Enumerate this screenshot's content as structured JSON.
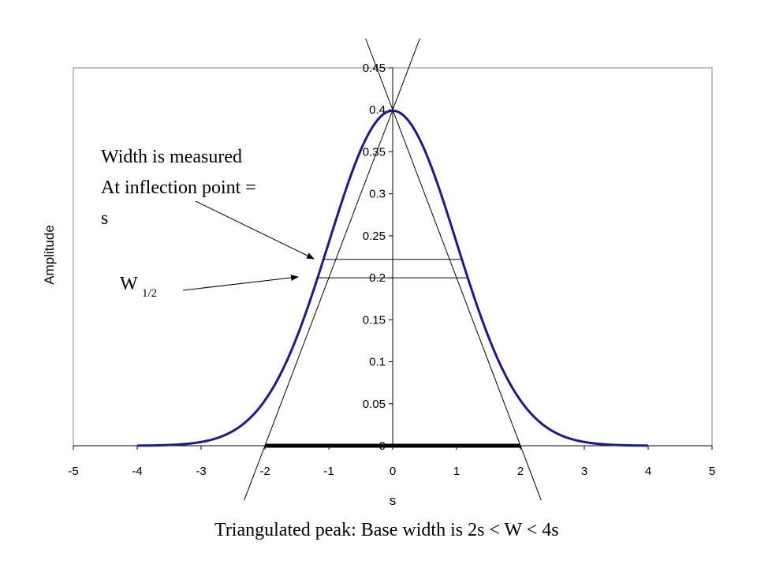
{
  "chart_data": {
    "type": "line",
    "title": "",
    "xlabel": "s",
    "ylabel": "Amplitude",
    "xlim": [
      -5,
      5
    ],
    "ylim": [
      0,
      0.45
    ],
    "x_ticks": [
      "-5",
      "-4",
      "-3",
      "-2",
      "-1",
      "0",
      "1",
      "2",
      "3",
      "4",
      "5"
    ],
    "y_ticks": [
      "0",
      "0.05",
      "0.1",
      "0.15",
      "0.2",
      "0.25",
      "0.3",
      "0.35",
      "0.4",
      "0.45"
    ],
    "grid": false,
    "legend": "none",
    "series": [
      {
        "curve": "gaussian",
        "mean": 0,
        "sigma": 1,
        "x_range": [
          -4,
          4
        ],
        "peak": 0.399,
        "color": "#1a1a8c"
      }
    ],
    "tangent_lines": [
      {
        "x0": -2.0,
        "y0": 0,
        "x1": 0,
        "y1": 0.4
      },
      {
        "x0": 2.0,
        "y0": 0,
        "x1": 0,
        "y1": 0.4
      }
    ],
    "width_markers": [
      {
        "label": "inflection",
        "y": 0.222,
        "x_left": -1.1,
        "x_right": 1.1
      },
      {
        "label": "half-height",
        "y": 0.2,
        "x_left": -1.18,
        "x_right": 1.18
      }
    ],
    "base_segment": {
      "x_left": -2,
      "x_right": 2,
      "y": 0
    }
  },
  "annotations": {
    "inflection_line1": "Width is measured",
    "inflection_line2": "At inflection point =",
    "inflection_line3": "s",
    "w_main": "W",
    "w_sub": "1/2",
    "bottom_caption": "Triangulated peak: Base width is 2s < W < 4s"
  },
  "colors": {
    "curve": "#1a1a8c",
    "axis": "#000000",
    "frame": "#808080",
    "base_bar": "#000000"
  }
}
